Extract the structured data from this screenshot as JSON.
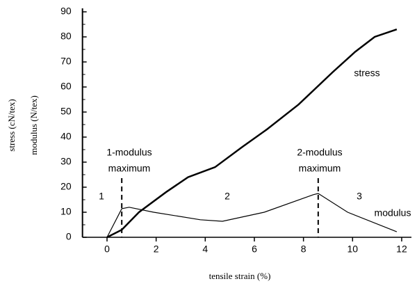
{
  "chart_data": {
    "type": "line",
    "xlabel": "tensile strain (%)",
    "ylabels": [
      "stress (cN/tex)",
      "modulus (N/tex)"
    ],
    "xlim": [
      -1,
      12
    ],
    "xticks": [
      0,
      2,
      4,
      6,
      8,
      10,
      12
    ],
    "ylim": [
      0,
      90
    ],
    "yticks": [
      0,
      10,
      20,
      30,
      40,
      50,
      60,
      70,
      80,
      90
    ],
    "grid": false,
    "series": [
      {
        "name": "stress",
        "color": "#000000",
        "x": [
          0,
          0.6,
          1.3,
          2.4,
          3.3,
          4.4,
          5.5,
          6.5,
          7.8,
          9.2,
          10.1,
          10.9,
          11.8
        ],
        "values": [
          0,
          3,
          10,
          18,
          24,
          28,
          36,
          43,
          53,
          66,
          74,
          80,
          83
        ]
      },
      {
        "name": "modulus",
        "color": "#000000",
        "x": [
          0,
          0.6,
          0.9,
          1.9,
          3.8,
          4.7,
          6.4,
          8.4,
          8.6,
          9.8,
          11.8
        ],
        "values": [
          0,
          11.4,
          12,
          10,
          7,
          6.4,
          10,
          17,
          17.5,
          10,
          2.2
        ]
      }
    ],
    "vlines": [
      0.6,
      8.6
    ],
    "annotations": [
      "1",
      "2",
      "3",
      "1-modulus",
      "maximum",
      "2-modulus",
      "maximum"
    ]
  }
}
